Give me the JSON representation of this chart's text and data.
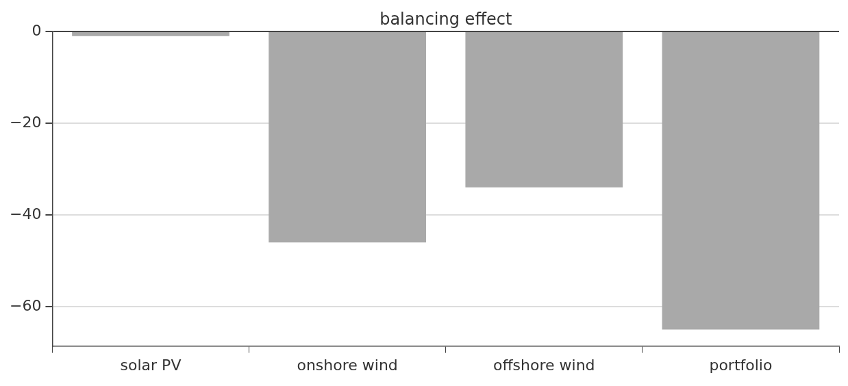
{
  "chart_data": {
    "type": "bar",
    "title": "balancing effect",
    "categories": [
      "solar PV",
      "onshore wind",
      "offshore wind",
      "portfolio"
    ],
    "values": [
      -1,
      -46,
      -34,
      -65
    ],
    "color": "#a9a9a9",
    "ylim": [
      -68.6,
      0
    ],
    "yticks": [
      0,
      -20,
      -40,
      -60
    ],
    "grid": "y"
  }
}
